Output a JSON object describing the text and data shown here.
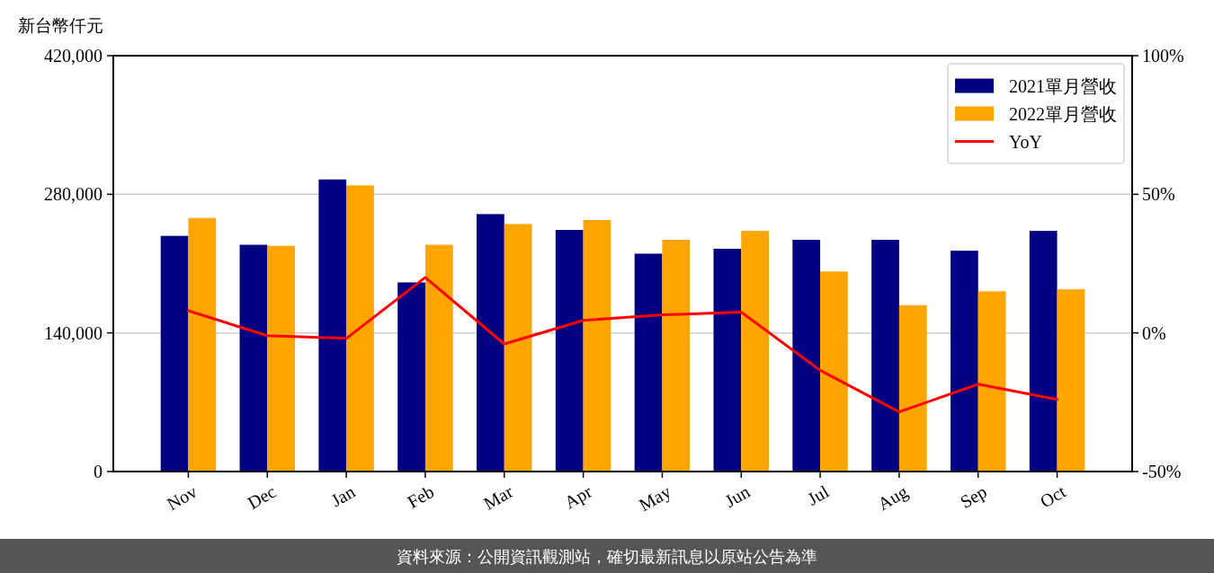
{
  "chart_data": {
    "type": "bar",
    "ylabel": "新台幣仟元",
    "annotations": [
      "資料來源：公開資訊觀測站，確切最新訊息以原站公告為準"
    ],
    "categories": [
      "Nov",
      "Dec",
      "Jan",
      "Feb",
      "Mar",
      "Apr",
      "May",
      "Jun",
      "Jul",
      "Aug",
      "Sep",
      "Oct"
    ],
    "series": [
      {
        "name": "2021單月營收",
        "color": "#000080",
        "values": [
          238000,
          229000,
          295000,
          191000,
          260000,
          244000,
          220000,
          225000,
          234000,
          234000,
          223000,
          243000
        ]
      },
      {
        "name": "2022單月營收",
        "color": "#ffa500",
        "values": [
          256000,
          228000,
          289000,
          229000,
          250000,
          254000,
          234000,
          243000,
          202000,
          168000,
          182000,
          184000
        ]
      },
      {
        "name": "YoY",
        "type": "line",
        "axis": "y2",
        "color": "#ff0000",
        "values": [
          8,
          -1,
          -2,
          20,
          -4,
          4.5,
          6.5,
          7.5,
          -13.5,
          -28.5,
          -18.5,
          -24
        ]
      }
    ],
    "ylim": [
      0,
      420000
    ],
    "yticks": [
      0,
      {
        "value": 140000,
        "label": "140,000"
      },
      {
        "value": 280000,
        "label": "280,000"
      },
      {
        "value": 420000,
        "label": "420,000"
      }
    ],
    "y2lim": [
      -50,
      100
    ],
    "y2ticks": [
      {
        "value": -50,
        "label": "-50%"
      },
      {
        "value": 0,
        "label": "0%"
      },
      {
        "value": 50,
        "label": "50%"
      },
      {
        "value": 100,
        "label": "100%"
      }
    ],
    "grid": "y",
    "legend": "top right"
  }
}
